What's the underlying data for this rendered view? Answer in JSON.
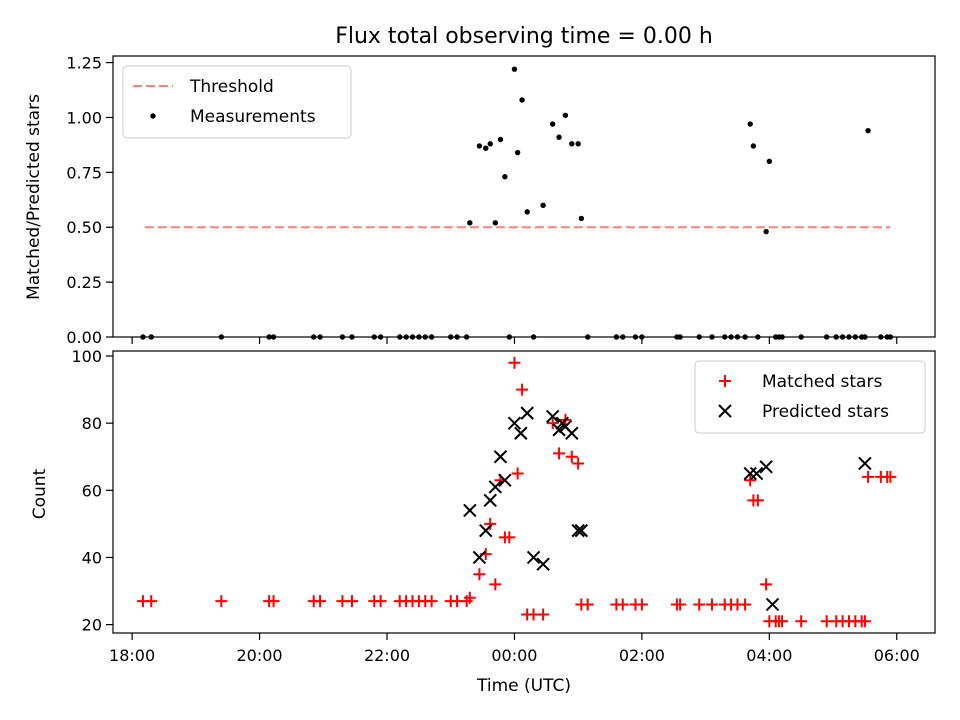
{
  "chart_data": [
    {
      "type": "scatter",
      "title": "Flux total observing time = 0.00 h",
      "xlabel": "",
      "ylabel": "Matched/Predicted stars",
      "xlim": [
        17.7,
        30.6
      ],
      "ylim": [
        0,
        1.28
      ],
      "x_ticks": [
        18,
        20,
        22,
        24,
        26,
        28,
        30
      ],
      "y_ticks": [
        0.0,
        0.25,
        0.5,
        0.75,
        1.0,
        1.25
      ],
      "y_tick_labels": [
        "0.00",
        "0.25",
        "0.50",
        "0.75",
        "1.00",
        "1.25"
      ],
      "legend_position": "top-left",
      "series": [
        {
          "name": "Threshold",
          "kind": "line",
          "color": "#ff7f7f",
          "dashed": true,
          "x": [
            18.2,
            29.9
          ],
          "y": [
            0.5,
            0.5
          ]
        },
        {
          "name": "Measurements",
          "kind": "points",
          "color": "#000000",
          "x": [
            18.17,
            18.3,
            19.4,
            20.15,
            20.22,
            20.85,
            20.95,
            21.3,
            21.45,
            21.8,
            21.9,
            22.2,
            22.3,
            22.4,
            22.5,
            22.6,
            22.7,
            23.0,
            23.1,
            23.25,
            23.3,
            23.45,
            23.55,
            23.62,
            23.7,
            23.78,
            23.85,
            23.92,
            24.0,
            24.05,
            24.12,
            24.2,
            24.3,
            24.45,
            24.6,
            24.7,
            24.8,
            24.9,
            25.0,
            25.05,
            25.15,
            25.6,
            25.7,
            25.9,
            26.0,
            26.55,
            26.6,
            26.9,
            27.1,
            27.3,
            27.4,
            27.5,
            27.62,
            27.7,
            27.75,
            27.82,
            27.95,
            28.0,
            28.1,
            28.15,
            28.2,
            28.5,
            28.9,
            29.05,
            29.15,
            29.25,
            29.35,
            29.45,
            29.5,
            29.55,
            29.75,
            29.85,
            29.9
          ],
          "y": [
            0,
            0,
            0,
            0,
            0,
            0,
            0,
            0,
            0,
            0,
            0,
            0,
            0,
            0,
            0,
            0,
            0,
            0,
            0,
            0,
            0.52,
            0.87,
            0.86,
            0.88,
            0.52,
            0.9,
            0.73,
            0,
            1.22,
            0.84,
            1.08,
            0.57,
            0,
            0.6,
            0.97,
            0.91,
            1.01,
            0.88,
            0.88,
            0.54,
            0,
            0,
            0,
            0,
            0,
            0,
            0,
            0,
            0,
            0,
            0,
            0,
            0,
            0.97,
            0.87,
            0,
            0.48,
            0.8,
            0,
            0,
            0,
            0,
            0,
            0,
            0,
            0,
            0,
            0,
            0,
            0.94,
            0,
            0,
            0
          ]
        }
      ]
    },
    {
      "type": "scatter",
      "title": "",
      "xlabel": "Time (UTC)",
      "ylabel": "Count",
      "xlim": [
        17.7,
        30.6
      ],
      "ylim": [
        17.5,
        101.5
      ],
      "x_ticks": [
        18,
        20,
        22,
        24,
        26,
        28,
        30
      ],
      "x_tick_labels": [
        "18:00",
        "20:00",
        "22:00",
        "00:00",
        "02:00",
        "04:00",
        "06:00"
      ],
      "y_ticks": [
        20,
        40,
        60,
        80,
        100
      ],
      "y_tick_labels": [
        "20",
        "40",
        "60",
        "80",
        "100"
      ],
      "legend_position": "top-right",
      "series": [
        {
          "name": "Matched stars",
          "kind": "plus",
          "color": "#ff0000",
          "x": [
            18.17,
            18.3,
            19.4,
            20.15,
            20.22,
            20.85,
            20.95,
            21.3,
            21.45,
            21.8,
            21.9,
            22.2,
            22.3,
            22.4,
            22.5,
            22.6,
            22.7,
            23.0,
            23.1,
            23.25,
            23.3,
            23.45,
            23.55,
            23.62,
            23.7,
            23.78,
            23.85,
            23.92,
            24.0,
            24.05,
            24.12,
            24.2,
            24.3,
            24.45,
            24.6,
            24.7,
            24.8,
            24.9,
            25.0,
            25.05,
            25.15,
            25.6,
            25.7,
            25.9,
            26.0,
            26.55,
            26.6,
            26.9,
            27.1,
            27.3,
            27.4,
            27.5,
            27.62,
            27.7,
            27.75,
            27.82,
            27.95,
            28.0,
            28.1,
            28.15,
            28.2,
            28.5,
            28.9,
            29.05,
            29.15,
            29.25,
            29.35,
            29.45,
            29.5,
            29.55,
            29.75,
            29.85,
            29.9
          ],
          "y": [
            27,
            27,
            27,
            27,
            27,
            27,
            27,
            27,
            27,
            27,
            27,
            27,
            27,
            27,
            27,
            27,
            27,
            27,
            27,
            27,
            28,
            35,
            41,
            50,
            32,
            63,
            46,
            46,
            98,
            65,
            90,
            23,
            23,
            23,
            80,
            71,
            81,
            70,
            68,
            26,
            26,
            26,
            26,
            26,
            26,
            26,
            26,
            26,
            26,
            26,
            26,
            26,
            26,
            63,
            57,
            57,
            32,
            21,
            21,
            21,
            21,
            21,
            21,
            21,
            21,
            21,
            21,
            21,
            21,
            64,
            64,
            64,
            64
          ]
        },
        {
          "name": "Predicted stars",
          "kind": "cross",
          "color": "#000000",
          "x": [
            23.3,
            23.45,
            23.55,
            23.62,
            23.7,
            23.78,
            23.85,
            24.0,
            24.1,
            24.2,
            24.3,
            24.45,
            24.6,
            24.7,
            24.75,
            24.8,
            24.9,
            25.0,
            25.05,
            27.7,
            27.8,
            27.95,
            28.05,
            29.5
          ],
          "y": [
            54,
            40,
            48,
            57,
            61,
            70,
            63,
            80,
            77,
            83,
            40,
            38,
            82,
            78,
            80,
            79,
            77,
            48,
            48,
            65,
            65,
            67,
            26,
            68
          ]
        }
      ]
    }
  ]
}
